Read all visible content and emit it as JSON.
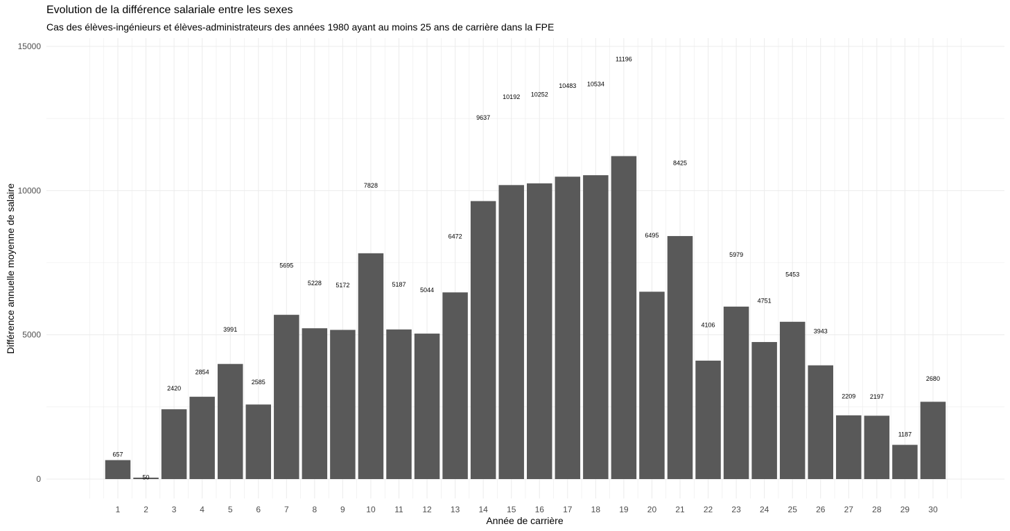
{
  "chart_data": {
    "type": "bar",
    "title": "Evolution de la différence salariale entre les sexes",
    "subtitle": "Cas des élèves-ingénieurs et élèves-administrateurs des années 1980 ayant au moins 25 ans de carrière dans la FPE",
    "xlabel": "Année de carrière",
    "ylabel": "Différence annuelle moyenne de salaire",
    "categories": [
      "1",
      "2",
      "3",
      "4",
      "5",
      "6",
      "7",
      "8",
      "9",
      "10",
      "11",
      "12",
      "13",
      "14",
      "15",
      "16",
      "17",
      "18",
      "19",
      "20",
      "21",
      "22",
      "23",
      "24",
      "25",
      "26",
      "27",
      "28",
      "29",
      "30"
    ],
    "values": [
      657,
      50,
      2420,
      2854,
      3991,
      2585,
      5695,
      5228,
      5172,
      7828,
      5187,
      5044,
      6472,
      9637,
      10192,
      10252,
      10483,
      10534,
      11196,
      6495,
      8425,
      4106,
      5979,
      4751,
      5453,
      3943,
      2209,
      2197,
      1187,
      2680
    ],
    "data_labels": [
      "657",
      "50",
      "2420",
      "2854",
      "3991",
      "2585",
      "5695",
      "5228",
      "5172",
      "7828",
      "5187",
      "5044",
      "6472",
      "9637",
      "10192",
      "10252",
      "10483",
      "10534",
      "11196",
      "6495",
      "8425",
      "4106",
      "5979",
      "4751",
      "5453",
      "3943",
      "2209",
      "2197",
      "1187",
      "2680"
    ],
    "ylim": [
      0,
      15000
    ],
    "yticks": [
      0,
      5000,
      10000,
      15000
    ],
    "ytick_labels": [
      "0",
      "5000",
      "10000",
      "15000"
    ],
    "bar_color": "#595959",
    "grid": true,
    "grid_color": "#ebebeb",
    "legend": "none"
  }
}
